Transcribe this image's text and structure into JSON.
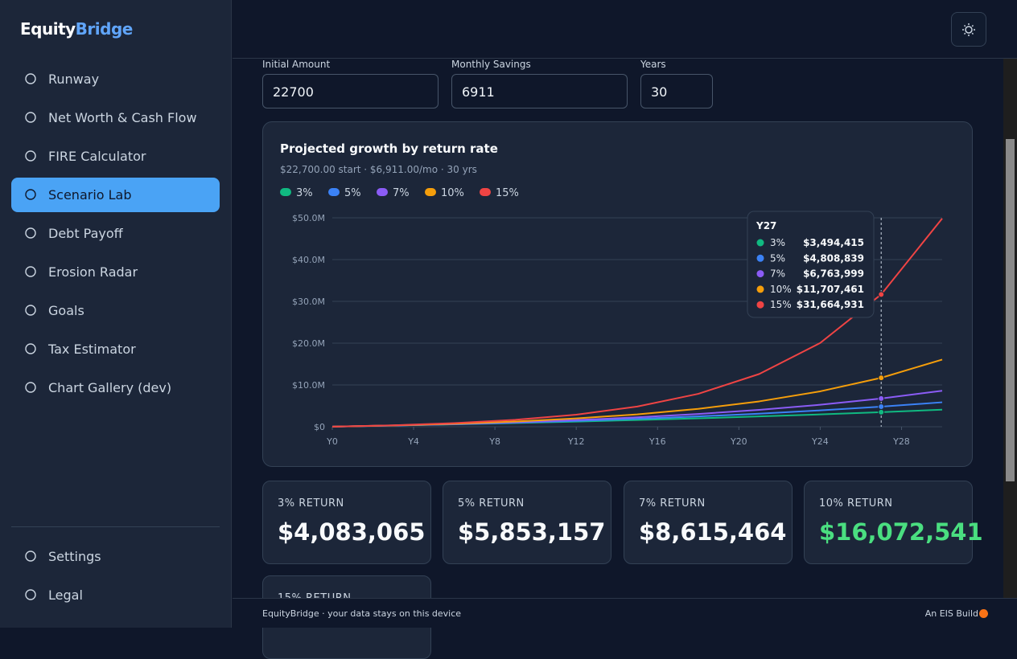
{
  "brand": {
    "part1": "Equity",
    "part2": "Bridge"
  },
  "nav": [
    "Runway",
    "Net Worth & Cash Flow",
    "FIRE Calculator",
    "Scenario Lab",
    "Debt Payoff",
    "Erosion Radar",
    "Goals",
    "Tax Estimator",
    "Chart Gallery (dev)"
  ],
  "nav_bottom": [
    "Settings",
    "Legal"
  ],
  "inputs": [
    {
      "label": "Initial Amount",
      "value": "22700"
    },
    {
      "label": "Monthly Savings",
      "value": "6911"
    },
    {
      "label": "Years",
      "value": "30"
    }
  ],
  "chart_data": {
    "type": "line",
    "title": "Projected growth by return rate",
    "subtitle": "$22,700.00 start · $6,911.00/mo · 30 yrs",
    "x": [
      0,
      3,
      6,
      9,
      12,
      15,
      18,
      21,
      24,
      27,
      30
    ],
    "xlim": [
      0,
      30
    ],
    "xticks": [
      {
        "value": 0,
        "label": "Y0"
      },
      {
        "value": 4,
        "label": "Y4"
      },
      {
        "value": 8,
        "label": "Y8"
      },
      {
        "value": 12,
        "label": "Y12"
      },
      {
        "value": 16,
        "label": "Y16"
      },
      {
        "value": 20,
        "label": "Y20"
      },
      {
        "value": 24,
        "label": "Y24"
      },
      {
        "value": 28,
        "label": "Y28"
      }
    ],
    "ylim": [
      0,
      50000000
    ],
    "yticks": [
      {
        "value": 0,
        "label": "$0"
      },
      {
        "value": 10000000,
        "label": "$10.0M"
      },
      {
        "value": 20000000,
        "label": "$20.0M"
      },
      {
        "value": 30000000,
        "label": "$30.0M"
      },
      {
        "value": 40000000,
        "label": "$40.0M"
      },
      {
        "value": 50000000,
        "label": "$50.0M"
      }
    ],
    "grid": true,
    "series": [
      {
        "name": "3%",
        "color": "#10b981",
        "values": [
          22700,
          284800,
          571600,
          885400,
          1228700,
          1604300,
          2015100,
          2464600,
          2956500,
          3494415,
          4083065
        ]
      },
      {
        "name": "5%",
        "color": "#3b82f6",
        "values": [
          22700,
          294200,
          609600,
          975800,
          1401100,
          1895200,
          2469100,
          3135600,
          3909600,
          4808839,
          5853157
        ]
      },
      {
        "name": "7%",
        "color": "#8b5cf6",
        "values": [
          22700,
          303900,
          650700,
          1078200,
          1605400,
          2255300,
          3056500,
          4044200,
          5263000,
          6763999,
          8615464
        ]
      },
      {
        "name": "10%",
        "color": "#f59e0b",
        "values": [
          22700,
          319400,
          719300,
          1258500,
          1985700,
          2965400,
          4286900,
          6068200,
          8469600,
          11707461,
          16072541
        ]
      },
      {
        "name": "15%",
        "color": "#ef4444",
        "values": [
          22700,
          347300,
          854900,
          1648700,
          2890600,
          4832400,
          7870000,
          12618600,
          20044300,
          31664931,
          49828000
        ]
      }
    ],
    "tooltip": {
      "title": "Y27",
      "labels": [
        "$3,494,415",
        "$4,808,839",
        "$6,763,999",
        "$11,707,461",
        "$31,664,931"
      ]
    }
  },
  "cards": [
    {
      "label": "3% RETURN",
      "value": "$4,083,065"
    },
    {
      "label": "5% RETURN",
      "value": "$5,853,157"
    },
    {
      "label": "7% RETURN",
      "value": "$8,615,464"
    },
    {
      "label": "10% RETURN",
      "value": "$16,072,541"
    },
    {
      "label": "15% RETURN"
    }
  ],
  "footer": {
    "left": "EquityBridge · your data stays on this device",
    "right": "An EIS Build"
  }
}
